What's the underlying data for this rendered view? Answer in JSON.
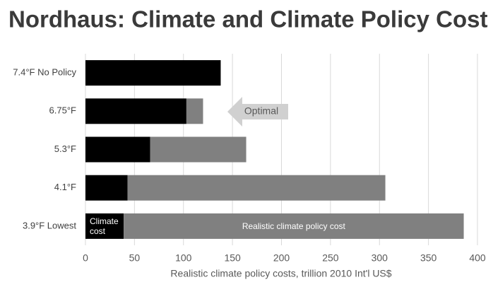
{
  "chart_data": {
    "type": "stacked-bar-horizontal",
    "title": "Nordhaus: Climate and Climate Policy Cost",
    "categories": [
      "7.4°F No Policy",
      "6.75°F",
      "5.3°F",
      "4.1°F",
      "3.9°F Lowest"
    ],
    "series": [
      {
        "name": "Climate cost",
        "color": "#000000",
        "values": [
          138,
          103,
          66,
          43,
          39
        ]
      },
      {
        "name": "Realistic climate policy cost",
        "color": "#808080",
        "values": [
          0,
          17,
          98,
          263,
          347
        ]
      }
    ],
    "xlim": [
      0,
      400
    ],
    "xticks": [
      0,
      50,
      100,
      150,
      200,
      250,
      300,
      350,
      400
    ],
    "xlabel": "Realistic climate policy costs, trillion 2010 Int'l US$",
    "annotation": "Optimal",
    "grid": true
  }
}
